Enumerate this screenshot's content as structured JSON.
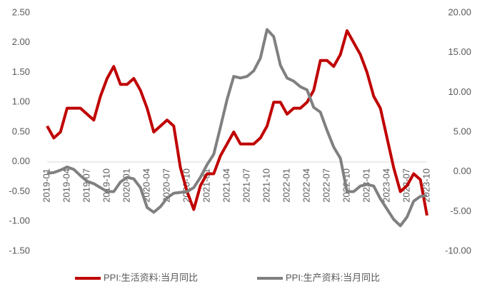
{
  "chart_data": {
    "type": "line",
    "categories": [
      "2019-01",
      null,
      null,
      "2019-04",
      null,
      null,
      "2019-07",
      null,
      null,
      "2019-10",
      null,
      null,
      "2020-01",
      null,
      null,
      "2020-04",
      null,
      null,
      "2020-07",
      null,
      null,
      "2020-10",
      null,
      null,
      "2021-01",
      null,
      null,
      "2021-04",
      null,
      null,
      "2021-07",
      null,
      null,
      "2021-10",
      null,
      null,
      "2022-01",
      null,
      null,
      "2022-04",
      null,
      null,
      "2022-07",
      null,
      null,
      "2022-10",
      null,
      null,
      "2023-01",
      null,
      null,
      "2023-04",
      null,
      null,
      "2023-07",
      null,
      null,
      "2023-10"
    ],
    "series": [
      {
        "name": "PPI:生活资料:当月同比",
        "color": "#c00000",
        "axis": "y",
        "values": [
          0.6,
          0.4,
          0.5,
          0.9,
          0.9,
          0.9,
          0.8,
          0.7,
          1.1,
          1.4,
          1.6,
          1.3,
          1.3,
          1.4,
          1.2,
          0.9,
          0.5,
          0.6,
          0.7,
          0.6,
          -0.1,
          -0.5,
          -0.8,
          -0.4,
          -0.2,
          -0.2,
          0.1,
          0.3,
          0.5,
          0.3,
          0.3,
          0.3,
          0.4,
          0.6,
          1.0,
          1.0,
          0.8,
          0.9,
          0.9,
          1.0,
          1.2,
          1.7,
          1.7,
          1.6,
          1.8,
          2.2,
          2.0,
          1.8,
          1.5,
          1.1,
          0.9,
          0.4,
          -0.1,
          -0.5,
          -0.4,
          -0.2,
          -0.3,
          -0.9
        ]
      },
      {
        "name": "PPI:生产资料:当月同比",
        "color": "#808080",
        "axis": "y2",
        "values": [
          -0.2,
          -0.1,
          0.2,
          0.6,
          0.3,
          -0.5,
          -1.2,
          -1.5,
          -2.0,
          -2.5,
          -2.5,
          -1.3,
          -0.7,
          -0.9,
          -2.0,
          -4.5,
          -5.1,
          -4.4,
          -3.3,
          -2.7,
          -2.6,
          -2.5,
          -2.0,
          -0.7,
          0.9,
          2.2,
          5.6,
          9.1,
          12.0,
          11.8,
          12.0,
          12.7,
          14.3,
          17.9,
          17.0,
          13.4,
          11.8,
          11.4,
          10.7,
          10.3,
          8.1,
          7.5,
          5.2,
          3.1,
          1.7,
          -2.5,
          -2.5,
          -1.8,
          -1.6,
          -1.8,
          -3.4,
          -4.7,
          -6.0,
          -6.8,
          -5.7,
          -3.7,
          -3.1,
          -3.0
        ]
      }
    ],
    "ylim": [
      -1.5,
      2.5
    ],
    "yticks": [
      {
        "value": -1.5,
        "label": "-1.50"
      },
      {
        "value": -1,
        "label": "-1.00"
      },
      {
        "value": -0.5,
        "label": "-0.50"
      },
      {
        "value": 0,
        "label": "0.00"
      },
      {
        "value": 0.5,
        "label": "0.50"
      },
      {
        "value": 1,
        "label": "1.00"
      },
      {
        "value": 1.5,
        "label": "1.50"
      },
      {
        "value": 2,
        "label": "2.00"
      },
      {
        "value": 2.5,
        "label": "2.50"
      }
    ],
    "y2lim": [
      -10,
      20
    ],
    "y2ticks": [
      {
        "value": -10,
        "label": "-10.00"
      },
      {
        "value": -5,
        "label": "-5.00"
      },
      {
        "value": 0,
        "label": "0.00"
      },
      {
        "value": 5,
        "label": "5.00"
      },
      {
        "value": 10,
        "label": "10.00"
      },
      {
        "value": 15,
        "label": "15.00"
      },
      {
        "value": 20,
        "label": "20.00"
      }
    ],
    "grid": false,
    "legend": "bottom"
  }
}
